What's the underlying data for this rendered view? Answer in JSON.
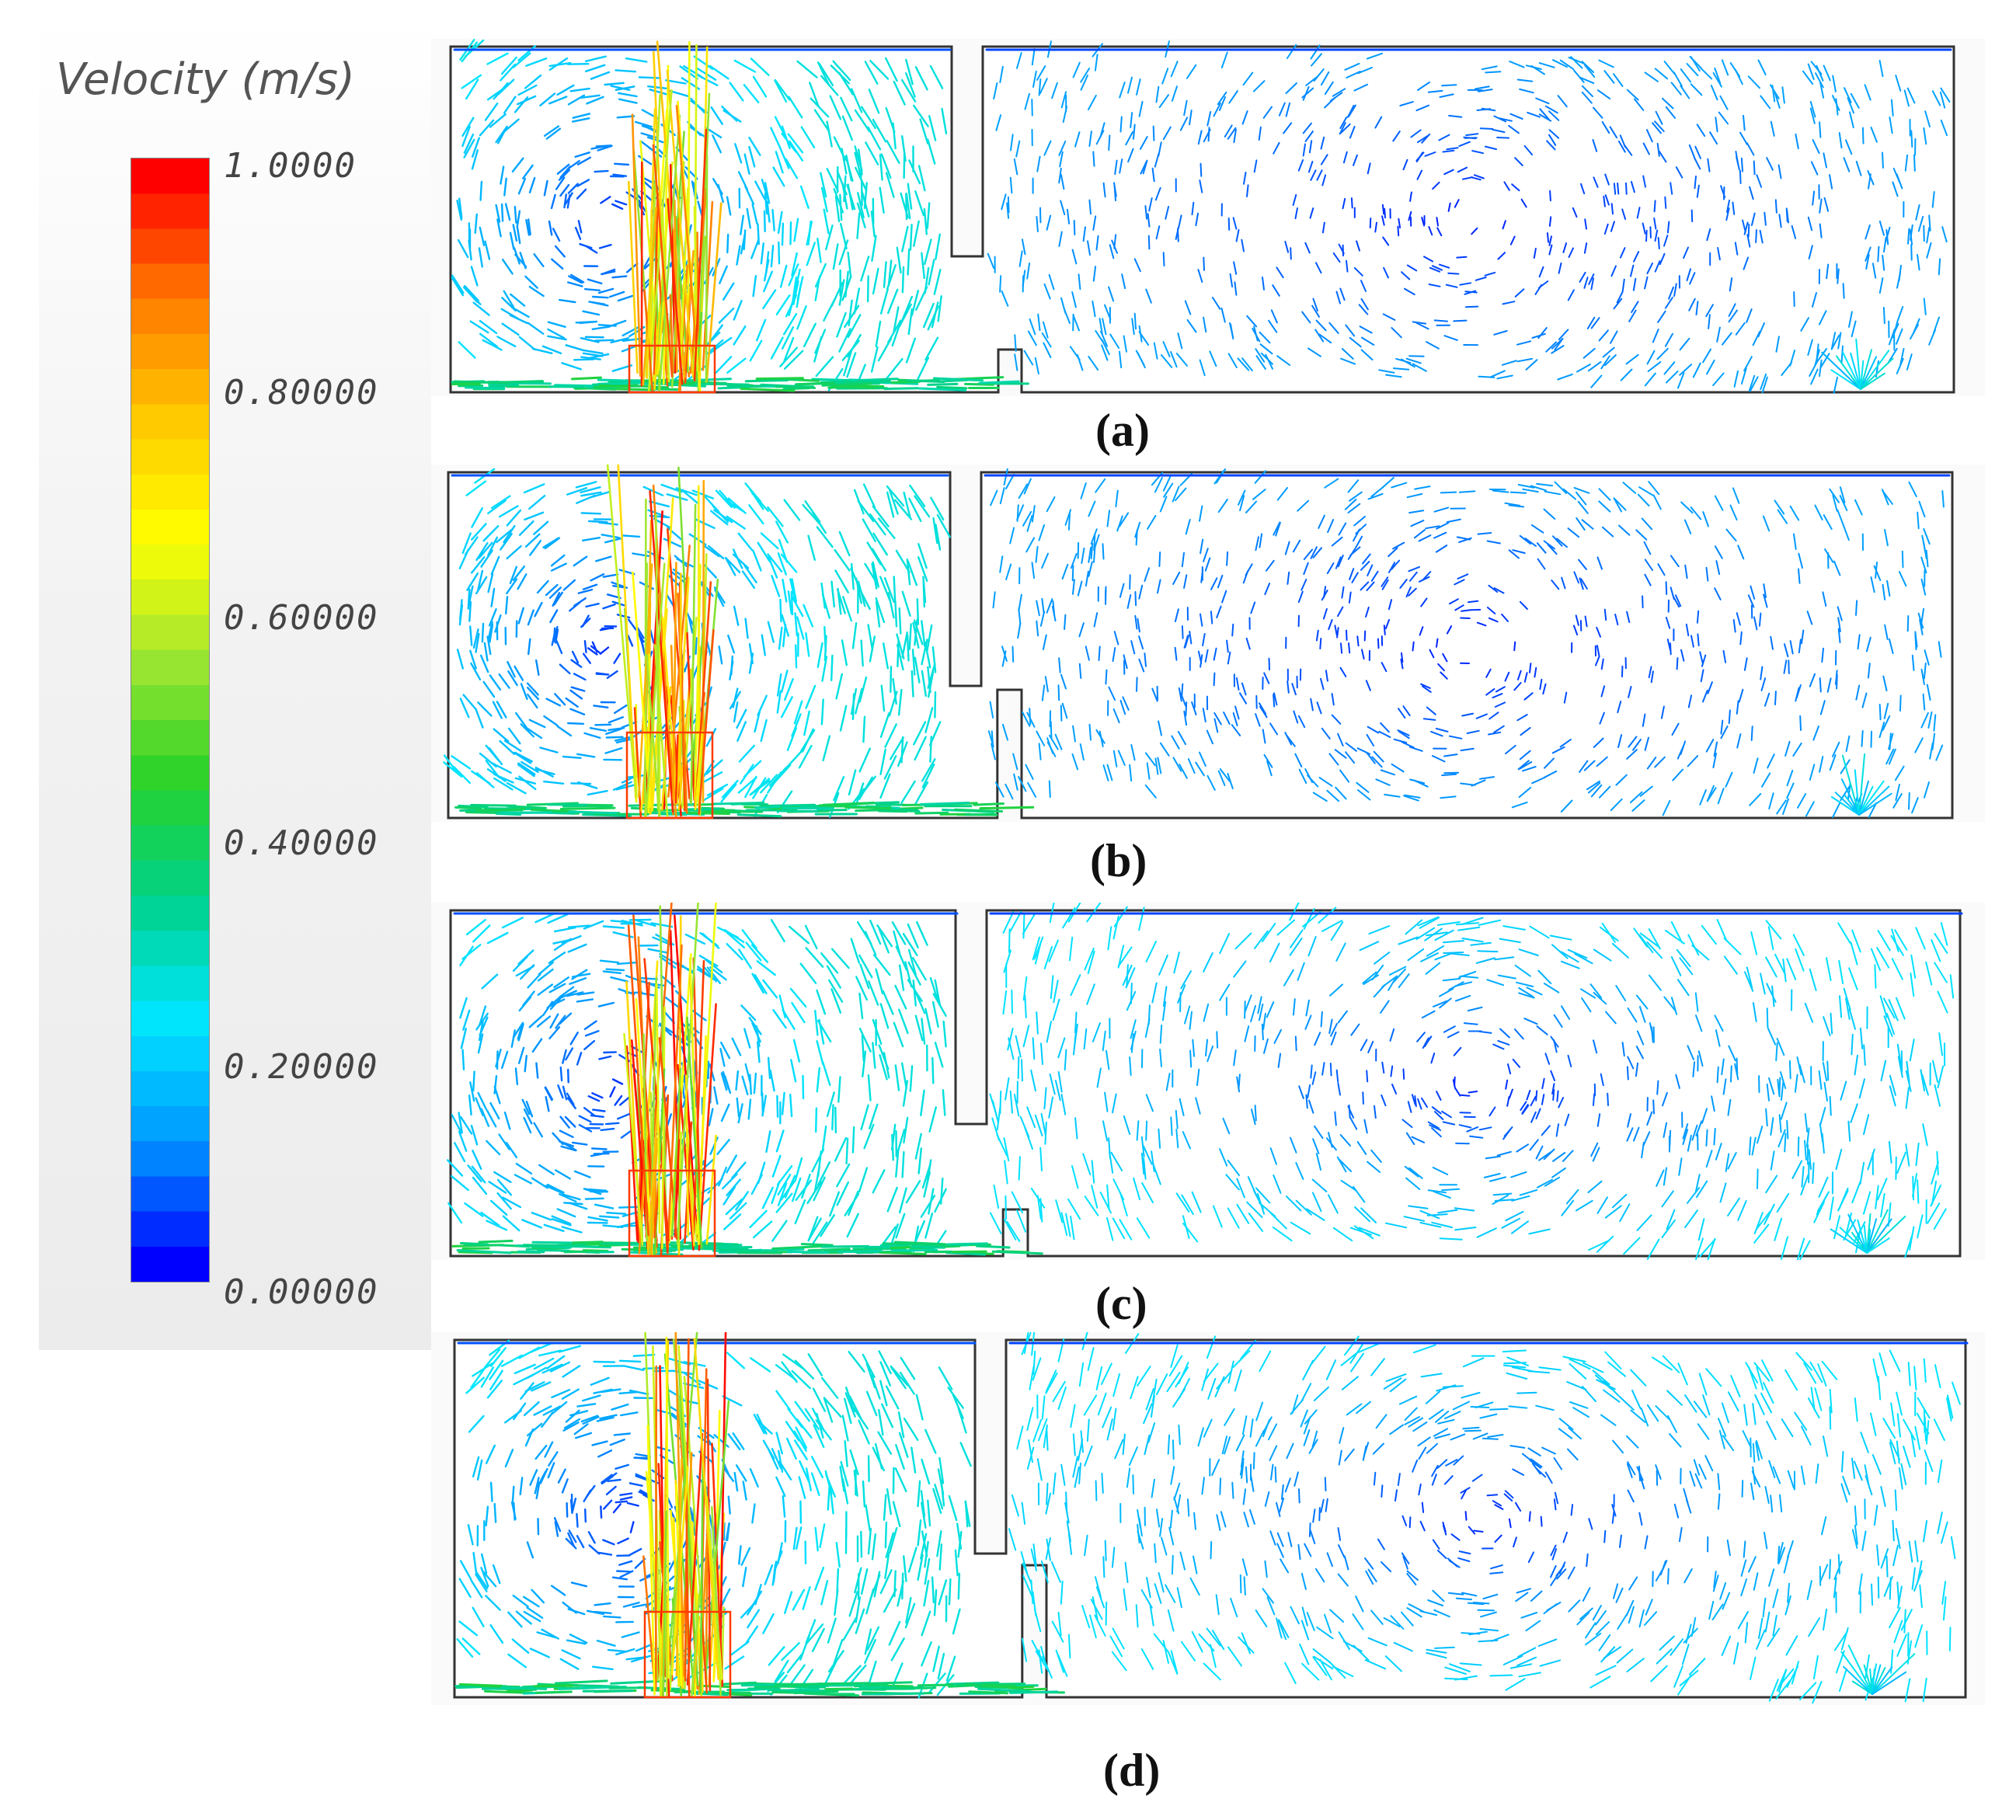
{
  "legend": {
    "title": "Velocity (m/s)",
    "ticks": [
      "1.0000",
      "0.80000",
      "0.60000",
      "0.40000",
      "0.20000",
      "0.00000"
    ],
    "range": [
      0,
      1
    ],
    "colormap": [
      "#0000ff",
      "#0096ff",
      "#00e6ff",
      "#00d28c",
      "#28d228",
      "#a0e632",
      "#ffff00",
      "#ffc800",
      "#ff7800",
      "#ff0000"
    ]
  },
  "panels": [
    {
      "label": "(a)"
    },
    {
      "label": "(b)"
    },
    {
      "label": "(c)"
    },
    {
      "label": "(d)"
    }
  ],
  "colors": {
    "wall": "#333333",
    "low_speed": "#1e3ccf",
    "mid_speed": "#1f9be0",
    "floor_jet": "#27d6b5",
    "plume_hot": "#ff3a00"
  }
}
